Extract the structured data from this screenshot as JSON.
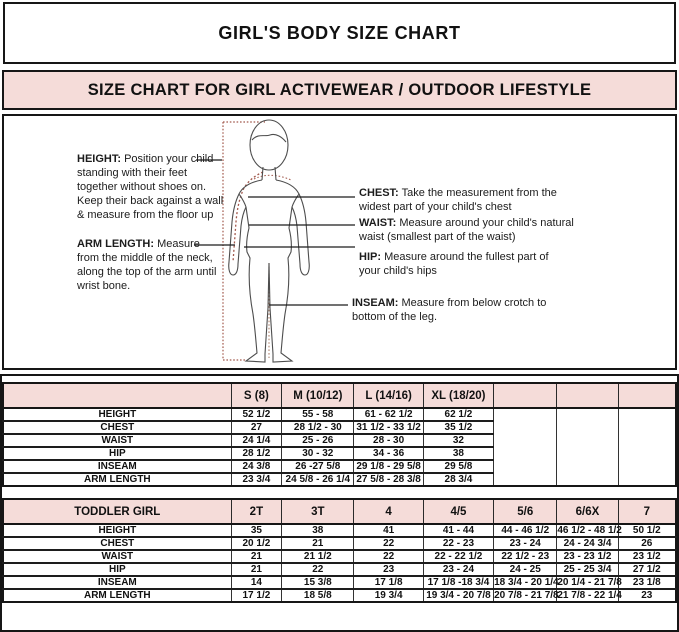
{
  "title": "GIRL'S BODY SIZE CHART",
  "banner": "SIZE CHART FOR GIRL ACTIVEWEAR / OUTDOOR LIFESTYLE",
  "diagram": {
    "annotations": {
      "height": {
        "label": "HEIGHT:",
        "text": "Position your child standing with their feet together without shoes on. Keep their back against a wall & measure from the floor up"
      },
      "arm_length": {
        "label": "ARM LENGTH:",
        "text": "Measure from the middle of the neck, along the top of the arm until wrist bone."
      },
      "chest": {
        "label": "CHEST:",
        "text": "Take the measurement from the widest part of your child's chest"
      },
      "waist": {
        "label": "WAIST:",
        "text": "Measure around your child's natural waist (smallest part of the waist)"
      },
      "hip": {
        "label": "HIP:",
        "text": "Measure around the fullest part of your child's hips"
      },
      "inseam": {
        "label": "INSEAM:",
        "text": "Measure from below crotch to bottom of the leg."
      }
    }
  },
  "size_table": {
    "columns": [
      "",
      "S (8)",
      "M (10/12)",
      "L (14/16)",
      "XL (18/20)",
      "",
      "",
      ""
    ],
    "rows": [
      {
        "label": "HEIGHT",
        "values": [
          "52 1/2",
          "55 - 58",
          "61 - 62 1/2",
          "62 1/2"
        ]
      },
      {
        "label": "CHEST",
        "values": [
          "27",
          "28 1/2 - 30",
          "31 1/2 - 33 1/2",
          "35 1/2"
        ]
      },
      {
        "label": "WAIST",
        "values": [
          "24 1/4",
          "25 - 26",
          "28 - 30",
          "32"
        ]
      },
      {
        "label": "HIP",
        "values": [
          "28 1/2",
          "30 - 32",
          "34 - 36",
          "38"
        ]
      },
      {
        "label": "INSEAM",
        "values": [
          "24 3/8",
          "26 -27 5/8",
          "29 1/8 - 29 5/8",
          "29 5/8"
        ]
      },
      {
        "label": "ARM LENGTH",
        "values": [
          "23 3/4",
          "24 5/8 - 26 1/4",
          "27 5/8 - 28 3/8",
          "28 3/4"
        ]
      }
    ]
  },
  "toddler_table": {
    "columns": [
      "TODDLER GIRL",
      "2T",
      "3T",
      "4",
      "4/5",
      "5/6",
      "6/6X",
      "7"
    ],
    "rows": [
      {
        "label": "HEIGHT",
        "values": [
          "35",
          "38",
          "41",
          "41 - 44",
          "44 - 46 1/2",
          "46 1/2 - 48 1/2",
          "50 1/2"
        ]
      },
      {
        "label": "CHEST",
        "values": [
          "20 1/2",
          "21",
          "22",
          "22 - 23",
          "23 - 24",
          "24 - 24 3/4",
          "26"
        ]
      },
      {
        "label": "WAIST",
        "values": [
          "21",
          "21 1/2",
          "22",
          "22 - 22 1/2",
          "22 1/2 - 23",
          "23 - 23 1/2",
          "23 1/2"
        ]
      },
      {
        "label": "HIP",
        "values": [
          "21",
          "22",
          "23",
          "23 - 24",
          "24 - 25",
          "25 - 25 3/4",
          "27 1/2"
        ]
      },
      {
        "label": "INSEAM",
        "values": [
          "14",
          "15 3/8",
          "17 1/8",
          "17 1/8 -18 3/4",
          "18 3/4 - 20 1/4",
          "20 1/4 - 21 7/8",
          "23 1/8"
        ]
      },
      {
        "label": "ARM LENGTH",
        "values": [
          "17 1/2",
          "18 5/8",
          "19 3/4",
          "19 3/4 - 20 7/8",
          "20 7/8 - 21 7/8",
          "21 7/8 - 22 1/4",
          "23"
        ]
      }
    ]
  },
  "colors": {
    "header_pink": "#f5dcd9",
    "measure_line_red": "#a2594d",
    "border_black": "#161616"
  }
}
